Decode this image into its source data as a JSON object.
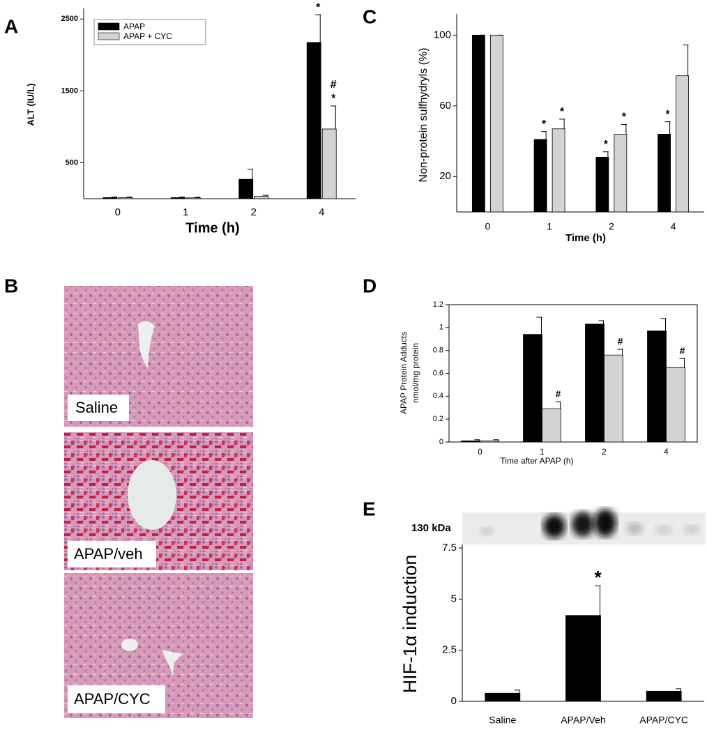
{
  "chart_data": [
    {
      "type": "bar",
      "panel": "A",
      "y_label": "ALT (IU/L)",
      "x_label": "Time (h)",
      "categories": [
        "0",
        "1",
        "2",
        "4"
      ],
      "ylim": [
        0,
        2600
      ],
      "yticks": [
        500,
        1500,
        2500
      ],
      "legend": "upper left",
      "series": [
        {
          "name": "APAP",
          "color": "#000000",
          "values": [
            15,
            15,
            270,
            2175
          ],
          "errors": [
            8,
            8,
            140,
            385
          ],
          "significance": [
            [],
            [],
            [],
            [
              "*"
            ]
          ]
        },
        {
          "name": "APAP + CYC",
          "color": "#d3d3d3",
          "values": [
            15,
            12,
            35,
            970
          ],
          "errors": [
            8,
            8,
            12,
            320
          ],
          "significance": [
            [],
            [],
            [],
            [
              "#",
              "*"
            ]
          ]
        }
      ]
    },
    {
      "type": "image",
      "panel": "B",
      "labels": [
        "Saline",
        "APAP/veh",
        "APAP/CYC"
      ]
    },
    {
      "type": "bar",
      "panel": "C",
      "y_label": "Non-protein sulfhydryls (%)",
      "x_label": "Time (h)",
      "categories": [
        "0",
        "1",
        "2",
        "4"
      ],
      "ylim": [
        0,
        110
      ],
      "yticks": [
        20,
        60,
        100
      ],
      "series": [
        {
          "color": "#000000",
          "values": [
            100,
            41,
            31,
            44
          ],
          "errors": [
            0,
            4.5,
            3,
            7
          ],
          "significance": [
            [],
            [
              "*"
            ],
            [
              "*"
            ],
            [
              "*"
            ]
          ]
        },
        {
          "color": "#d3d3d3",
          "values": [
            100,
            47,
            44,
            77
          ],
          "errors": [
            0,
            5.5,
            5.5,
            17.5
          ],
          "significance": [
            [],
            [
              "*"
            ],
            [
              "*"
            ],
            []
          ]
        }
      ]
    },
    {
      "type": "bar",
      "panel": "D",
      "y_label": [
        "APAP Protein Adducts",
        "nmol/mg protein"
      ],
      "x_label": "Time after APAP (h)",
      "categories": [
        "0",
        "1",
        "2",
        "4"
      ],
      "ylim": [
        0,
        1.2
      ],
      "yticks": [
        0,
        0.2,
        0.4,
        0.6,
        0.8,
        1,
        1.2
      ],
      "series": [
        {
          "color": "#000000",
          "values": [
            0.01,
            0.94,
            1.03,
            0.97
          ],
          "errors": [
            0.01,
            0.15,
            0.03,
            0.11
          ],
          "significance": [
            [],
            [],
            [],
            []
          ]
        },
        {
          "color": "#d3d3d3",
          "values": [
            0.01,
            0.29,
            0.76,
            0.65
          ],
          "errors": [
            0.01,
            0.06,
            0.05,
            0.08
          ],
          "significance": [
            [],
            [
              "#"
            ],
            [
              "#"
            ],
            [
              "#"
            ]
          ]
        }
      ]
    },
    {
      "type": "bar",
      "panel": "E",
      "y_label": "HIF-1α induction",
      "blot_label": "130 kDa",
      "categories": [
        "Saline",
        "APAP/Veh",
        "APAP/CYC"
      ],
      "ylim": [
        0,
        7.5
      ],
      "yticks": [
        0,
        2.5,
        5,
        7.5
      ],
      "series": [
        {
          "color": "#000000",
          "values": [
            0.4,
            4.2,
            0.5
          ],
          "errors": [
            0.15,
            1.45,
            0.12
          ],
          "significance": [
            [],
            [
              "*"
            ],
            []
          ]
        }
      ]
    }
  ]
}
